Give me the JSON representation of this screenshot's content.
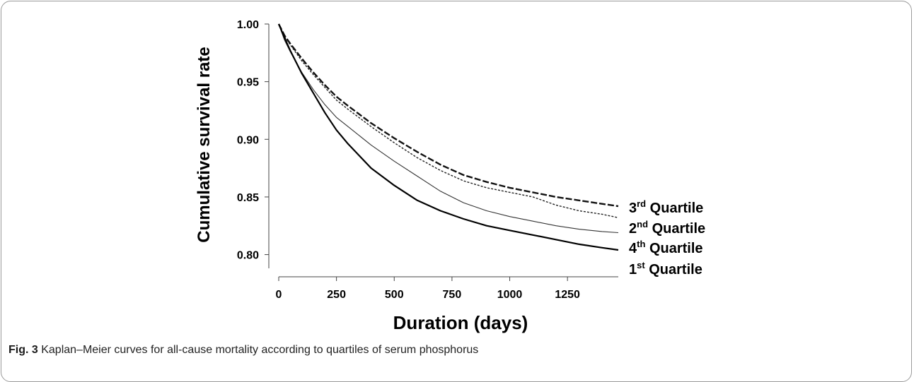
{
  "figure": {
    "label": "Fig. 3",
    "caption": "Kaplan–Meier curves for all-cause mortality according to quartiles of serum phosphorus"
  },
  "chart_data": {
    "type": "line",
    "title": "",
    "xlabel": "Duration (days)",
    "ylabel": "Cumulative survival rate",
    "xlim": [
      0,
      1470
    ],
    "ylim": [
      0.793,
      1.0
    ],
    "xticks": [
      0,
      250,
      500,
      750,
      1000,
      1250
    ],
    "yticks": [
      0.8,
      0.85,
      0.9,
      0.95,
      1.0
    ],
    "xtick_labels": [
      "0",
      "250",
      "500",
      "750",
      "1000",
      "1250"
    ],
    "ytick_labels": [
      "0.80",
      "0.85",
      "0.90",
      "0.95",
      "1.00"
    ],
    "grid": false,
    "series": [
      {
        "name": "3rd Quartile",
        "base": "3",
        "sup": "rd",
        "rest": "Quartile",
        "style": "dashed",
        "x": [
          0,
          25,
          50,
          100,
          150,
          200,
          250,
          300,
          400,
          500,
          600,
          700,
          800,
          900,
          1000,
          1100,
          1200,
          1300,
          1400,
          1470
        ],
        "y": [
          1.0,
          0.99,
          0.983,
          0.97,
          0.958,
          0.947,
          0.937,
          0.929,
          0.914,
          0.901,
          0.889,
          0.878,
          0.869,
          0.863,
          0.858,
          0.854,
          0.85,
          0.847,
          0.844,
          0.842
        ]
      },
      {
        "name": "2nd Quartile",
        "base": "2",
        "sup": "nd",
        "rest": "Quartile",
        "style": "dotted",
        "x": [
          0,
          25,
          50,
          100,
          150,
          200,
          250,
          300,
          400,
          500,
          600,
          700,
          800,
          900,
          1000,
          1100,
          1200,
          1300,
          1400,
          1470
        ],
        "y": [
          1.0,
          0.989,
          0.982,
          0.968,
          0.956,
          0.945,
          0.934,
          0.926,
          0.911,
          0.897,
          0.884,
          0.873,
          0.864,
          0.858,
          0.854,
          0.85,
          0.843,
          0.838,
          0.835,
          0.832
        ]
      },
      {
        "name": "4th Quartile",
        "base": "4",
        "sup": "th",
        "rest": "Quartile",
        "style": "thin",
        "x": [
          0,
          25,
          50,
          100,
          150,
          200,
          250,
          300,
          400,
          500,
          600,
          700,
          800,
          900,
          1000,
          1100,
          1200,
          1300,
          1400,
          1470
        ],
        "y": [
          1.0,
          0.986,
          0.976,
          0.958,
          0.943,
          0.93,
          0.919,
          0.911,
          0.895,
          0.881,
          0.868,
          0.855,
          0.845,
          0.838,
          0.833,
          0.829,
          0.825,
          0.822,
          0.82,
          0.819
        ]
      },
      {
        "name": "1st Quartile",
        "base": "1",
        "sup": "st",
        "rest": "Quartile",
        "style": "solid",
        "x": [
          0,
          25,
          50,
          100,
          150,
          200,
          250,
          300,
          400,
          500,
          600,
          700,
          800,
          900,
          1000,
          1100,
          1200,
          1300,
          1400,
          1470
        ],
        "y": [
          1.0,
          0.988,
          0.977,
          0.957,
          0.94,
          0.923,
          0.908,
          0.896,
          0.875,
          0.86,
          0.847,
          0.838,
          0.831,
          0.825,
          0.821,
          0.817,
          0.813,
          0.809,
          0.806,
          0.804
        ]
      }
    ]
  }
}
